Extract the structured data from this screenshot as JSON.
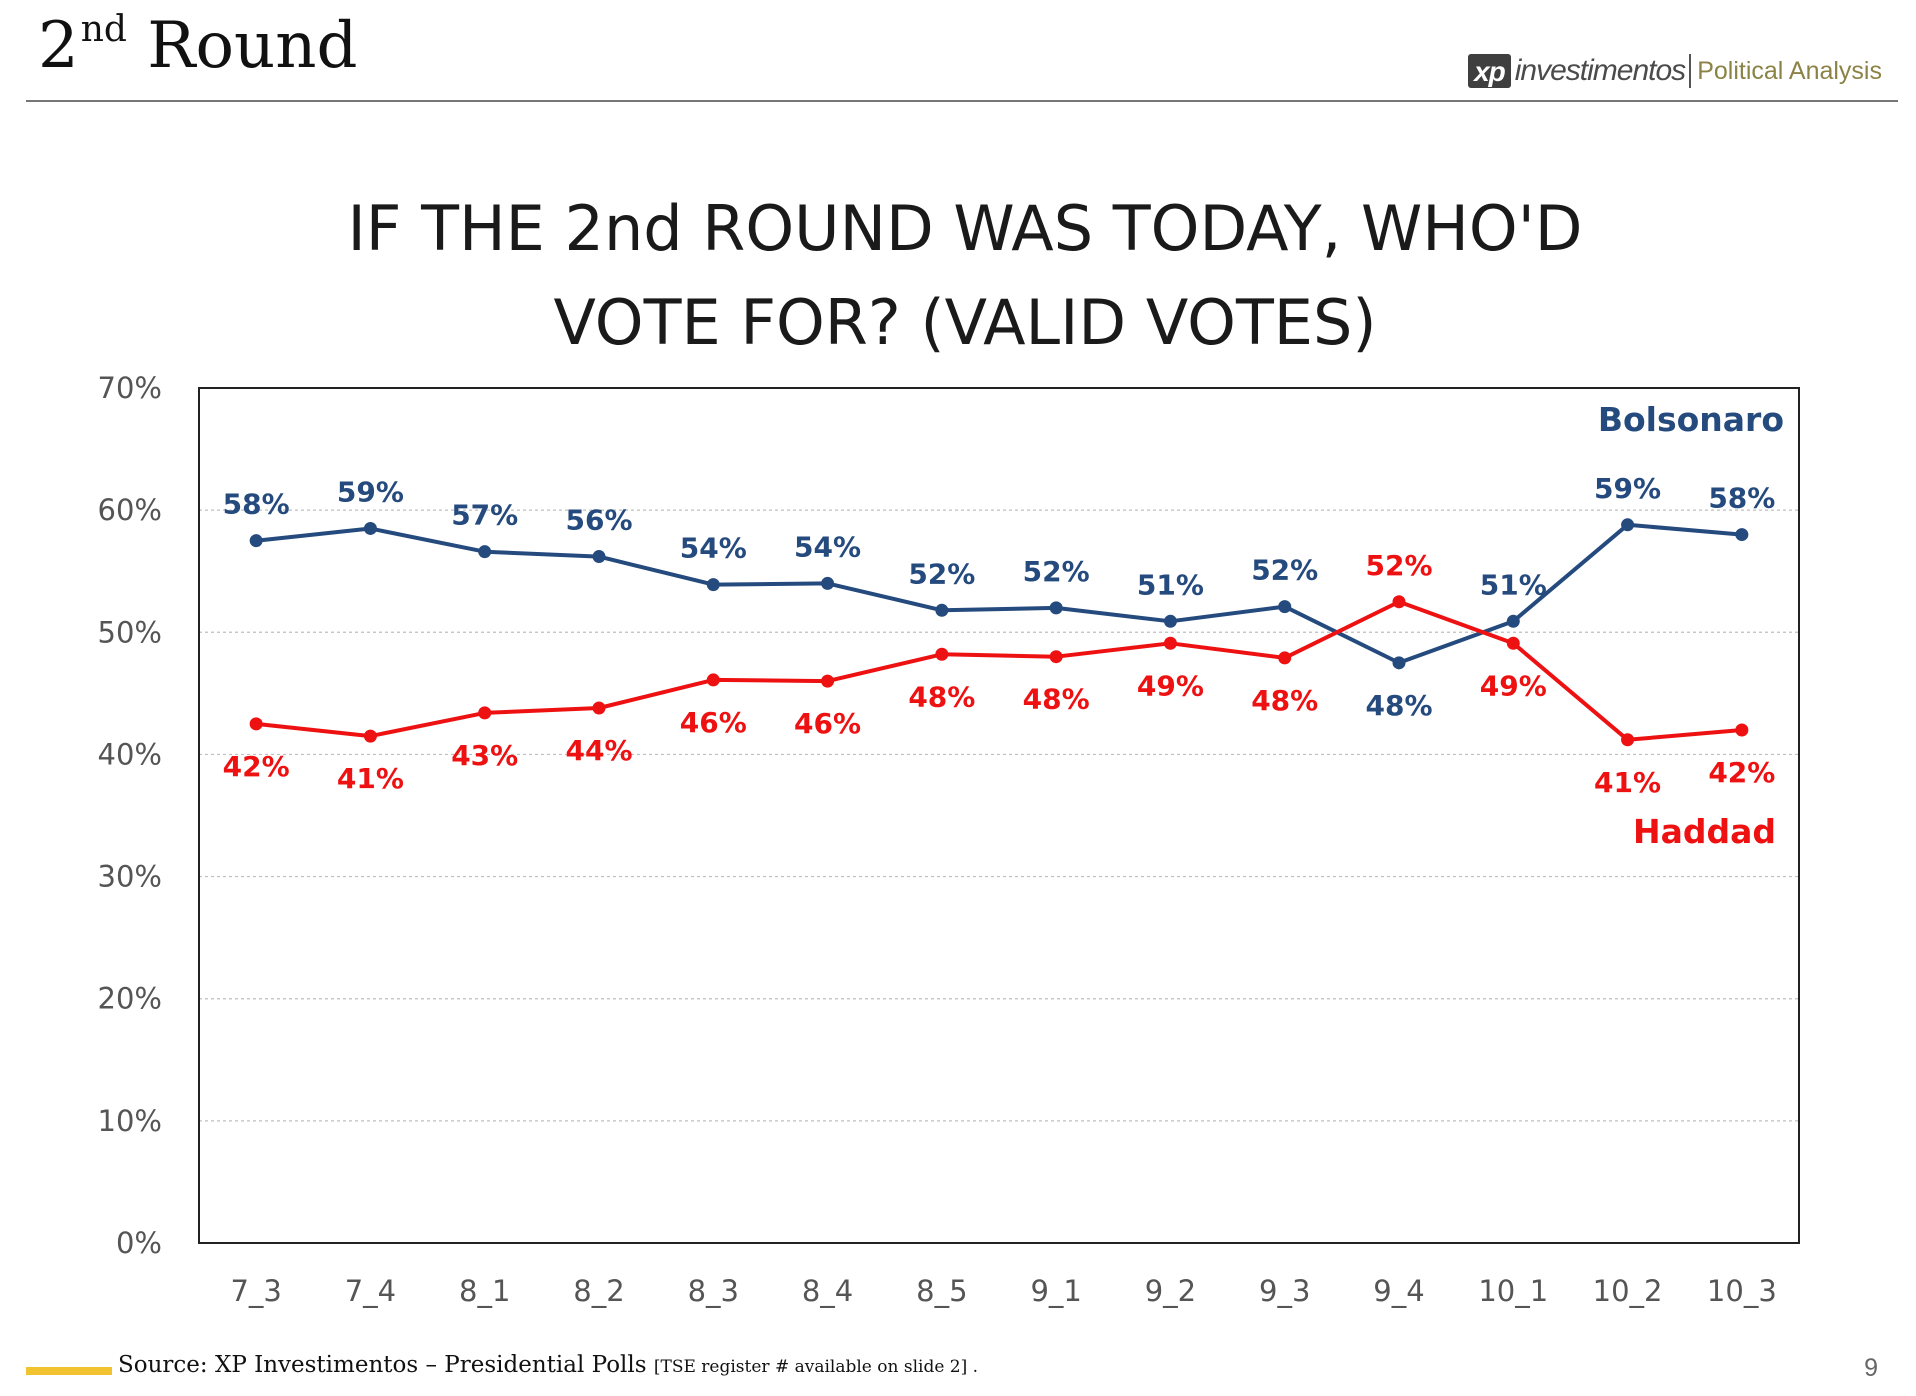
{
  "header": {
    "title_main": "2",
    "title_sup": "nd",
    "title_rest": "Round",
    "brand_logo": "xp",
    "brand_name": "investimentos",
    "brand_tag": "Political Analysis"
  },
  "footer": {
    "source": "Source: XP Investimentos – Presidential Polls",
    "source_note": "[TSE register # available on slide 2] .",
    "page_number": "9"
  },
  "colors": {
    "bolsonaro": "#254A7E",
    "haddad": "#EE1111",
    "grid": "#BFBFBF"
  },
  "chart_data": {
    "type": "line",
    "title_lines": [
      "IF THE 2nd ROUND WAS TODAY, WHO'D",
      "VOTE FOR? (VALID VOTES)"
    ],
    "categories": [
      "7_3",
      "7_4",
      "8_1",
      "8_2",
      "8_3",
      "8_4",
      "8_5",
      "9_1",
      "9_2",
      "9_3",
      "9_4",
      "10_1",
      "10_2",
      "10_3"
    ],
    "ylim": [
      0,
      70
    ],
    "yticks": [
      0,
      10,
      20,
      30,
      40,
      50,
      60,
      70
    ],
    "ytick_labels": [
      "0%",
      "10%",
      "20%",
      "30%",
      "40%",
      "50%",
      "60%",
      "70%"
    ],
    "grid": true,
    "series": [
      {
        "name": "Bolsonaro",
        "values": [
          57.5,
          58.5,
          56.6,
          56.2,
          53.9,
          54.0,
          51.8,
          52.0,
          50.9,
          52.1,
          47.5,
          50.9,
          58.8,
          58.0
        ],
        "labels": [
          "58%",
          "59%",
          "57%",
          "56%",
          "54%",
          "54%",
          "52%",
          "52%",
          "51%",
          "52%",
          "48%",
          "51%",
          "59%",
          "58%"
        ]
      },
      {
        "name": "Haddad",
        "values": [
          42.5,
          41.5,
          43.4,
          43.8,
          46.1,
          46.0,
          48.2,
          48.0,
          49.1,
          47.9,
          52.5,
          49.1,
          41.2,
          42.0
        ],
        "labels": [
          "42%",
          "41%",
          "43%",
          "44%",
          "46%",
          "46%",
          "48%",
          "48%",
          "49%",
          "48%",
          "52%",
          "49%",
          "41%",
          "42%"
        ]
      }
    ]
  }
}
